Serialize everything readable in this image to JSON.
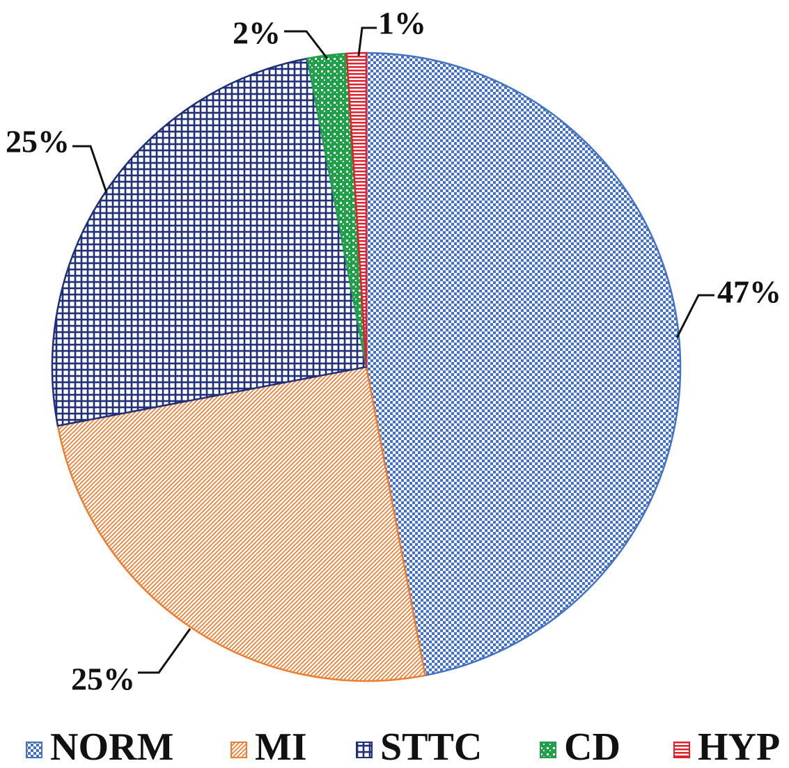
{
  "chart_data": {
    "type": "pie",
    "title": "",
    "slices": [
      {
        "name": "NORM",
        "value": 47,
        "label": "47%",
        "color": "#4472C4",
        "pattern": "checker"
      },
      {
        "name": "MI",
        "value": 25,
        "label": "25%",
        "color": "#ED7D31",
        "pattern": "diagonal"
      },
      {
        "name": "STTC",
        "value": 25,
        "label": "25%",
        "color": "#1F2F78",
        "pattern": "grid"
      },
      {
        "name": "CD",
        "value": 2,
        "label": "2%",
        "color": "#21A04A",
        "pattern": "dots"
      },
      {
        "name": "HYP",
        "value": 1,
        "label": "1%",
        "color": "#E0202A",
        "pattern": "hstripes"
      }
    ],
    "start": "12 o'clock",
    "direction": "clockwise",
    "legend_position": "bottom",
    "data_labels": "outside with leader lines"
  }
}
